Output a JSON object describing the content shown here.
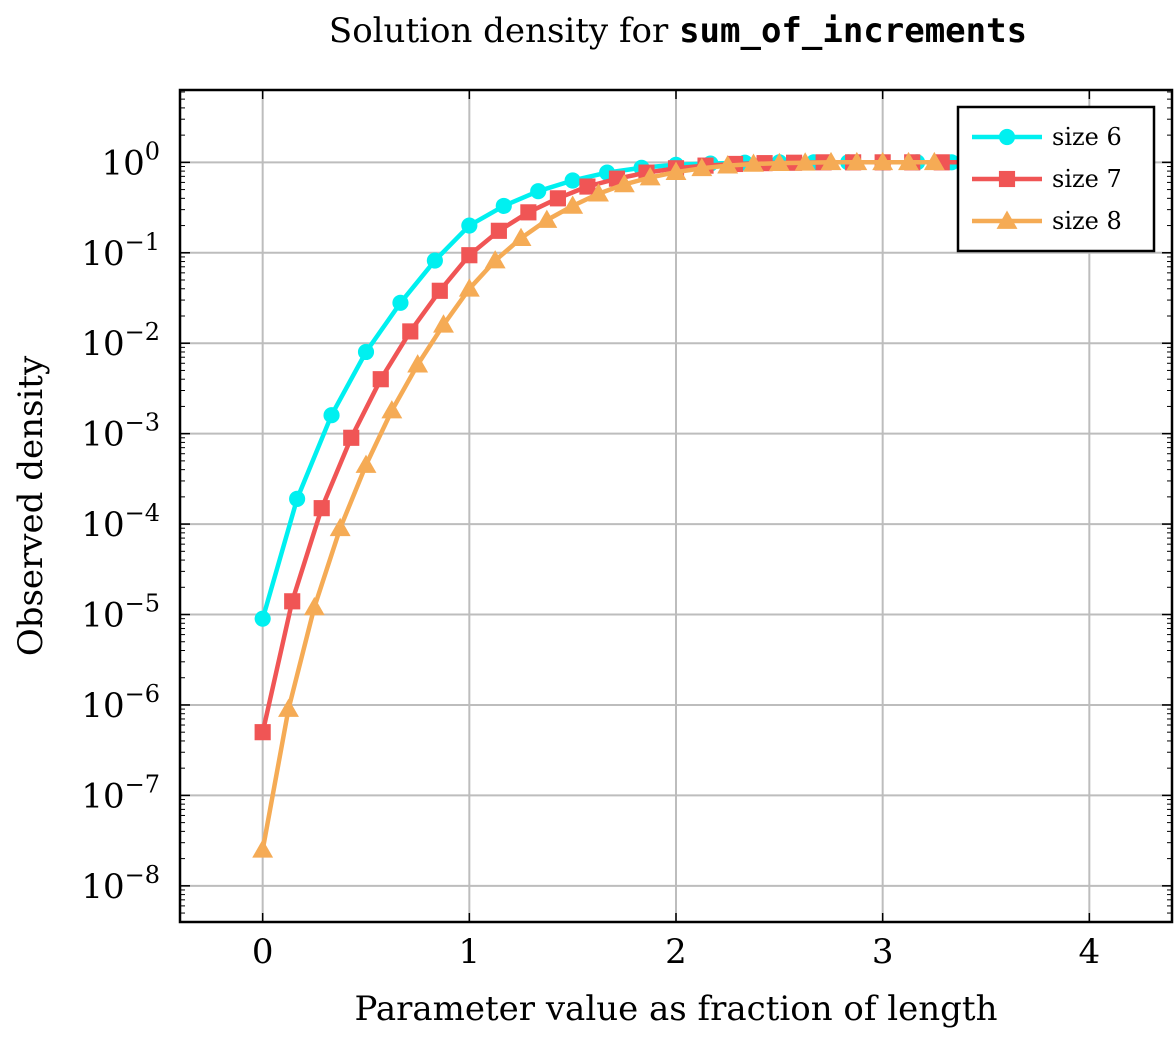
{
  "chart_data": {
    "type": "line",
    "title_prefix": "Solution density for ",
    "title_code": "sum_of_increments",
    "xlabel": "Parameter value as fraction of length",
    "ylabel": "Observed density",
    "y_scale": "log",
    "xlim": [
      -0.4,
      4.4
    ],
    "ylim_exp": [
      -8.4,
      0.8
    ],
    "x_ticks": [
      "0",
      "1",
      "2",
      "3",
      "4"
    ],
    "y_tick_mantissa": "10",
    "y_tick_exponents": [
      "0",
      "−1",
      "−2",
      "−3",
      "−4",
      "−5",
      "−6",
      "−7",
      "−8"
    ],
    "grid": true,
    "legend_position": "top-right",
    "series": [
      {
        "name": "size 6",
        "color": "#00f0f0",
        "marker": "circle",
        "x": [
          0,
          0.1667,
          0.3333,
          0.5,
          0.6667,
          0.8333,
          1.0,
          1.1667,
          1.3333,
          1.5,
          1.6667,
          1.8333,
          2.0,
          2.1667,
          2.3333,
          2.5,
          2.6667,
          2.8333,
          3.0,
          3.1667,
          3.3333,
          3.5
        ],
        "y": [
          9e-06,
          0.00019,
          0.0016,
          0.008,
          0.028,
          0.082,
          0.2,
          0.33,
          0.48,
          0.63,
          0.77,
          0.87,
          0.94,
          0.97,
          0.99,
          1.0,
          1.0,
          1.0,
          1.0,
          1.0,
          1.0,
          1.0
        ]
      },
      {
        "name": "size 7",
        "color": "#f05555",
        "marker": "square",
        "x": [
          0,
          0.1429,
          0.2857,
          0.4286,
          0.5714,
          0.7143,
          0.8571,
          1.0,
          1.1429,
          1.2857,
          1.4286,
          1.5714,
          1.7143,
          1.8571,
          2.0,
          2.1429,
          2.2857,
          2.4286,
          2.5714,
          2.7143,
          2.8571,
          3.0,
          3.1429,
          3.2857,
          3.4286
        ],
        "y": [
          5e-07,
          1.4e-05,
          0.00015,
          0.0009,
          0.004,
          0.0135,
          0.038,
          0.094,
          0.175,
          0.28,
          0.4,
          0.54,
          0.66,
          0.77,
          0.86,
          0.92,
          0.96,
          0.98,
          0.99,
          1.0,
          1.0,
          1.0,
          1.0,
          1.0,
          1.0
        ]
      },
      {
        "name": "size 8",
        "color": "#f5ab55",
        "marker": "triangle",
        "x": [
          0,
          0.125,
          0.25,
          0.375,
          0.5,
          0.625,
          0.75,
          0.875,
          1.0,
          1.125,
          1.25,
          1.375,
          1.5,
          1.625,
          1.75,
          1.875,
          2.0,
          2.125,
          2.25,
          2.375,
          2.5,
          2.625,
          2.75,
          2.875,
          3.0,
          3.125,
          3.25
        ],
        "y": [
          2.5e-08,
          9e-07,
          1.2e-05,
          9e-05,
          0.00045,
          0.0018,
          0.0058,
          0.016,
          0.04,
          0.082,
          0.145,
          0.23,
          0.33,
          0.45,
          0.57,
          0.68,
          0.78,
          0.86,
          0.92,
          0.96,
          0.98,
          0.99,
          1.0,
          1.0,
          1.0,
          1.0,
          1.0
        ]
      }
    ]
  }
}
